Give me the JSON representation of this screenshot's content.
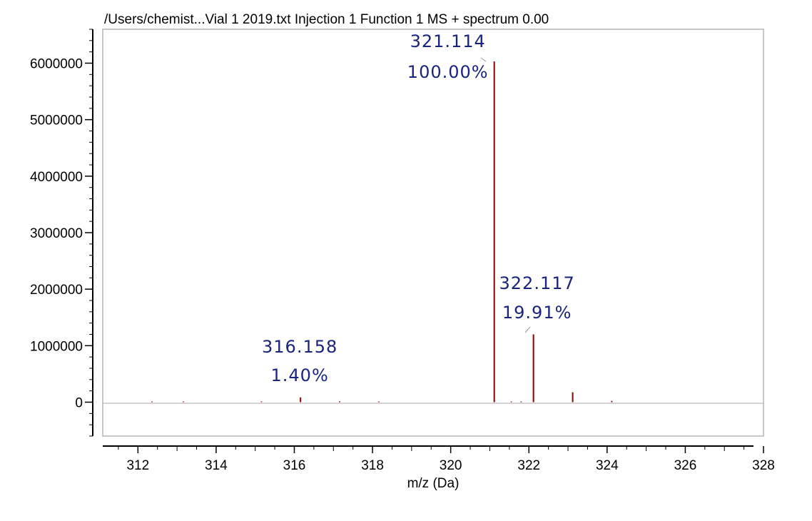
{
  "colors": {
    "peak": "#8b0000",
    "annotation": "#1a237e",
    "axis": "#000000",
    "frame": "#b5b5b5"
  },
  "chart_data": {
    "type": "bar",
    "title": "/Users/chemist...Vial 1 2019.txt Injection 1 Function 1 MS + spectrum 0.00",
    "xlabel": "m/z (Da)",
    "ylabel": "",
    "xlim": [
      311.1,
      328.0
    ],
    "ylim": [
      -600000,
      6600000
    ],
    "x_ticks": [
      312,
      314,
      316,
      318,
      320,
      322,
      324,
      326,
      328
    ],
    "y_ticks": [
      0,
      1000000,
      2000000,
      3000000,
      4000000,
      5000000,
      6000000
    ],
    "grid": false,
    "baseline": 0,
    "series": [
      {
        "points": [
          {
            "x": 312.36,
            "y": 5000
          },
          {
            "x": 313.16,
            "y": 5000
          },
          {
            "x": 315.16,
            "y": 6000
          },
          {
            "x": 316.158,
            "y": 84000
          },
          {
            "x": 317.16,
            "y": 15000
          },
          {
            "x": 318.16,
            "y": 5000
          },
          {
            "x": 321.114,
            "y": 6030000
          },
          {
            "x": 321.55,
            "y": 5000
          },
          {
            "x": 321.8,
            "y": 6000
          },
          {
            "x": 322.117,
            "y": 1200000
          },
          {
            "x": 323.12,
            "y": 175000
          },
          {
            "x": 324.12,
            "y": 22000
          }
        ]
      }
    ],
    "annotations": [
      {
        "x": 316.158,
        "y": 84000,
        "mz": "316.158",
        "pct": "1.40%"
      },
      {
        "x": 321.114,
        "y": 6030000,
        "mz": "321.114",
        "pct": "100.00%"
      },
      {
        "x": 322.117,
        "y": 1200000,
        "mz": "322.117",
        "pct": "19.91%"
      }
    ]
  }
}
